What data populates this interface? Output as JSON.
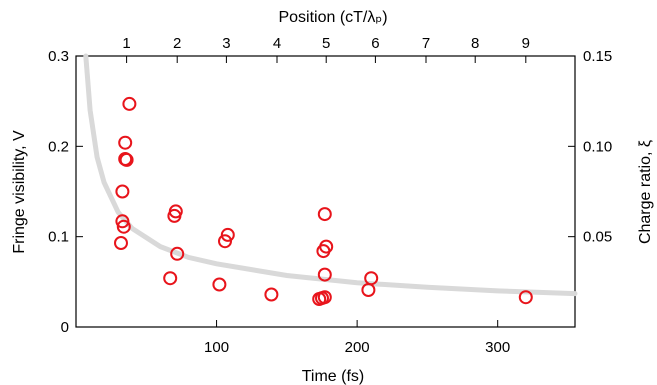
{
  "chart_data": {
    "type": "scatter",
    "xlabel": "Time (fs)",
    "ylabel": "Fringe visibility, V",
    "x2label": "Position (cT/λₚ)",
    "y2label": "Charge ratio, ξ",
    "xlim": [
      0,
      355
    ],
    "ylim": [
      0,
      0.3
    ],
    "y2lim": [
      0,
      0.15
    ],
    "x_ticks": [
      100,
      200,
      300
    ],
    "x_tick_labels": [
      "100",
      "200",
      "300"
    ],
    "y_ticks": [
      0,
      0.1,
      0.2,
      0.3
    ],
    "y_tick_labels": [
      "0",
      "0.1",
      "0.2",
      "0.3"
    ],
    "y2_ticks": [
      0.05,
      0.1,
      0.15
    ],
    "y2_tick_labels": [
      "0.05",
      "0.10",
      "0.15"
    ],
    "x2_tick_positions_time": [
      36,
      72,
      107,
      143,
      178,
      213,
      249,
      284,
      320
    ],
    "x2_tick_labels": [
      "1",
      "2",
      "3",
      "4",
      "5",
      "6",
      "7",
      "8",
      "9"
    ],
    "grid": false,
    "colors": {
      "points": "#e8141b",
      "curve": "#d9d9d9"
    },
    "series": [
      {
        "type": "scatter",
        "x": [
          38,
          35,
          36,
          35,
          33,
          33,
          34,
          32,
          71,
          70,
          72,
          67,
          108,
          106,
          102,
          139,
          177,
          178,
          176,
          177,
          177,
          175,
          173,
          210,
          208,
          320
        ],
        "y": [
          0.247,
          0.204,
          0.185,
          0.186,
          0.15,
          0.117,
          0.111,
          0.093,
          0.128,
          0.123,
          0.081,
          0.054,
          0.102,
          0.095,
          0.047,
          0.036,
          0.125,
          0.089,
          0.084,
          0.058,
          0.033,
          0.032,
          0.031,
          0.054,
          0.041,
          0.033
        ]
      },
      {
        "type": "line",
        "x": [
          7,
          10,
          15,
          20,
          30,
          40,
          60,
          80,
          100,
          150,
          200,
          250,
          300,
          355
        ],
        "y": [
          0.3,
          0.24,
          0.188,
          0.16,
          0.127,
          0.109,
          0.089,
          0.077,
          0.07,
          0.057,
          0.049,
          0.044,
          0.04,
          0.037
        ]
      }
    ]
  }
}
